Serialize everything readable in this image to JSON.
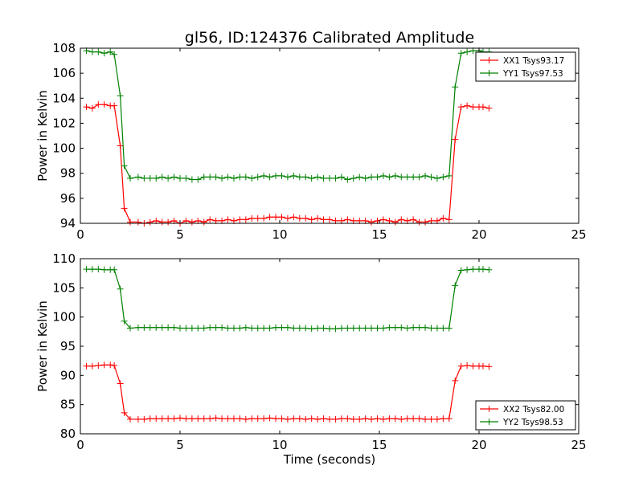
{
  "chart_data": [
    {
      "type": "line",
      "title": "gl56, ID:124376 Calibrated Amplitude",
      "xlabel": "",
      "ylabel": "Power in Kelvin",
      "xlim": [
        0,
        25
      ],
      "ylim": [
        94,
        108
      ],
      "xticks": [
        "0",
        "5",
        "10",
        "15",
        "20",
        "25"
      ],
      "yticks": [
        "94",
        "96",
        "98",
        "100",
        "102",
        "104",
        "106",
        "108"
      ],
      "grid": false,
      "legend": "top-right",
      "x": [
        0.3,
        0.6,
        0.9,
        1.2,
        1.5,
        1.7,
        2.0,
        2.2,
        2.5,
        2.9,
        3.2,
        3.5,
        3.8,
        4.1,
        4.4,
        4.7,
        5.0,
        5.3,
        5.6,
        5.9,
        6.2,
        6.5,
        6.8,
        7.1,
        7.4,
        7.7,
        8.0,
        8.3,
        8.6,
        8.9,
        9.2,
        9.5,
        9.8,
        10.1,
        10.4,
        10.7,
        11.0,
        11.3,
        11.6,
        11.9,
        12.2,
        12.5,
        12.8,
        13.1,
        13.4,
        13.7,
        14.0,
        14.3,
        14.6,
        14.9,
        15.2,
        15.5,
        15.8,
        16.1,
        16.4,
        16.7,
        17.0,
        17.3,
        17.6,
        17.9,
        18.2,
        18.5,
        18.8,
        19.1,
        19.4,
        19.7,
        20.0,
        20.2,
        20.5
      ],
      "series": [
        {
          "name": "XX1 Tsys93.17",
          "color": "#ff0000",
          "values": [
            103.3,
            103.2,
            103.5,
            103.5,
            103.4,
            103.4,
            100.2,
            95.2,
            94.1,
            94.1,
            94.0,
            94.1,
            94.2,
            94.1,
            94.1,
            94.2,
            94.0,
            94.2,
            94.1,
            94.2,
            94.1,
            94.3,
            94.2,
            94.2,
            94.3,
            94.2,
            94.3,
            94.3,
            94.4,
            94.4,
            94.4,
            94.5,
            94.5,
            94.5,
            94.4,
            94.5,
            94.4,
            94.4,
            94.3,
            94.4,
            94.3,
            94.3,
            94.2,
            94.2,
            94.3,
            94.2,
            94.2,
            94.2,
            94.1,
            94.2,
            94.3,
            94.2,
            94.1,
            94.3,
            94.2,
            94.3,
            94.1,
            94.1,
            94.2,
            94.2,
            94.4,
            94.3,
            100.7,
            103.3,
            103.4,
            103.3,
            103.3,
            103.3,
            103.2
          ]
        },
        {
          "name": "YY1 Tsys97.53",
          "color": "#008000",
          "values": [
            107.8,
            107.7,
            107.7,
            107.6,
            107.7,
            107.5,
            104.2,
            98.6,
            97.6,
            97.7,
            97.6,
            97.6,
            97.6,
            97.7,
            97.6,
            97.7,
            97.6,
            97.6,
            97.5,
            97.5,
            97.7,
            97.7,
            97.7,
            97.6,
            97.7,
            97.6,
            97.7,
            97.7,
            97.6,
            97.7,
            97.8,
            97.7,
            97.8,
            97.8,
            97.7,
            97.8,
            97.7,
            97.7,
            97.6,
            97.7,
            97.6,
            97.6,
            97.6,
            97.7,
            97.5,
            97.6,
            97.7,
            97.6,
            97.7,
            97.7,
            97.8,
            97.7,
            97.8,
            97.7,
            97.7,
            97.7,
            97.7,
            97.8,
            97.7,
            97.6,
            97.7,
            97.8,
            104.9,
            107.6,
            107.7,
            107.8,
            107.8,
            107.7,
            107.7
          ]
        }
      ]
    },
    {
      "type": "line",
      "title": "",
      "xlabel": "Time (seconds)",
      "ylabel": "Power in Kelvin",
      "xlim": [
        0,
        25
      ],
      "ylim": [
        80,
        110
      ],
      "xticks": [
        "0",
        "5",
        "10",
        "15",
        "20",
        "25"
      ],
      "yticks": [
        "80",
        "85",
        "90",
        "95",
        "100",
        "105",
        "110"
      ],
      "grid": false,
      "legend": "bottom-right",
      "x": [
        0.3,
        0.6,
        0.9,
        1.2,
        1.5,
        1.7,
        2.0,
        2.2,
        2.5,
        2.9,
        3.2,
        3.5,
        3.8,
        4.1,
        4.4,
        4.7,
        5.0,
        5.3,
        5.6,
        5.9,
        6.2,
        6.5,
        6.8,
        7.1,
        7.4,
        7.7,
        8.0,
        8.3,
        8.6,
        8.9,
        9.2,
        9.5,
        9.8,
        10.1,
        10.4,
        10.7,
        11.0,
        11.3,
        11.6,
        11.9,
        12.2,
        12.5,
        12.8,
        13.1,
        13.4,
        13.7,
        14.0,
        14.3,
        14.6,
        14.9,
        15.2,
        15.5,
        15.8,
        16.1,
        16.4,
        16.7,
        17.0,
        17.3,
        17.6,
        17.9,
        18.2,
        18.5,
        18.8,
        19.1,
        19.4,
        19.7,
        20.0,
        20.2,
        20.5
      ],
      "series": [
        {
          "name": "XX2 Tsys82.00",
          "color": "#ff0000",
          "values": [
            91.6,
            91.6,
            91.7,
            91.8,
            91.8,
            91.7,
            88.6,
            83.6,
            82.5,
            82.5,
            82.5,
            82.6,
            82.6,
            82.6,
            82.6,
            82.6,
            82.7,
            82.6,
            82.6,
            82.6,
            82.6,
            82.6,
            82.7,
            82.6,
            82.6,
            82.6,
            82.6,
            82.5,
            82.6,
            82.6,
            82.6,
            82.7,
            82.6,
            82.6,
            82.5,
            82.6,
            82.6,
            82.5,
            82.6,
            82.5,
            82.6,
            82.5,
            82.5,
            82.6,
            82.6,
            82.5,
            82.5,
            82.6,
            82.5,
            82.6,
            82.5,
            82.6,
            82.6,
            82.5,
            82.6,
            82.6,
            82.6,
            82.5,
            82.5,
            82.5,
            82.6,
            82.6,
            89.1,
            91.6,
            91.7,
            91.6,
            91.6,
            91.6,
            91.5
          ]
        },
        {
          "name": "YY2 Tsys98.53",
          "color": "#008000",
          "values": [
            108.2,
            108.2,
            108.2,
            108.1,
            108.1,
            108.1,
            104.8,
            99.3,
            98.1,
            98.2,
            98.2,
            98.2,
            98.2,
            98.2,
            98.2,
            98.2,
            98.1,
            98.1,
            98.1,
            98.1,
            98.1,
            98.2,
            98.2,
            98.2,
            98.1,
            98.1,
            98.1,
            98.2,
            98.1,
            98.1,
            98.1,
            98.1,
            98.2,
            98.2,
            98.2,
            98.1,
            98.1,
            98.1,
            98.0,
            98.1,
            98.1,
            98.0,
            98.0,
            98.1,
            98.1,
            98.1,
            98.1,
            98.1,
            98.1,
            98.1,
            98.1,
            98.2,
            98.2,
            98.2,
            98.1,
            98.2,
            98.2,
            98.2,
            98.1,
            98.1,
            98.1,
            98.1,
            105.4,
            108.0,
            108.1,
            108.2,
            108.2,
            108.2,
            108.1
          ]
        }
      ]
    }
  ]
}
